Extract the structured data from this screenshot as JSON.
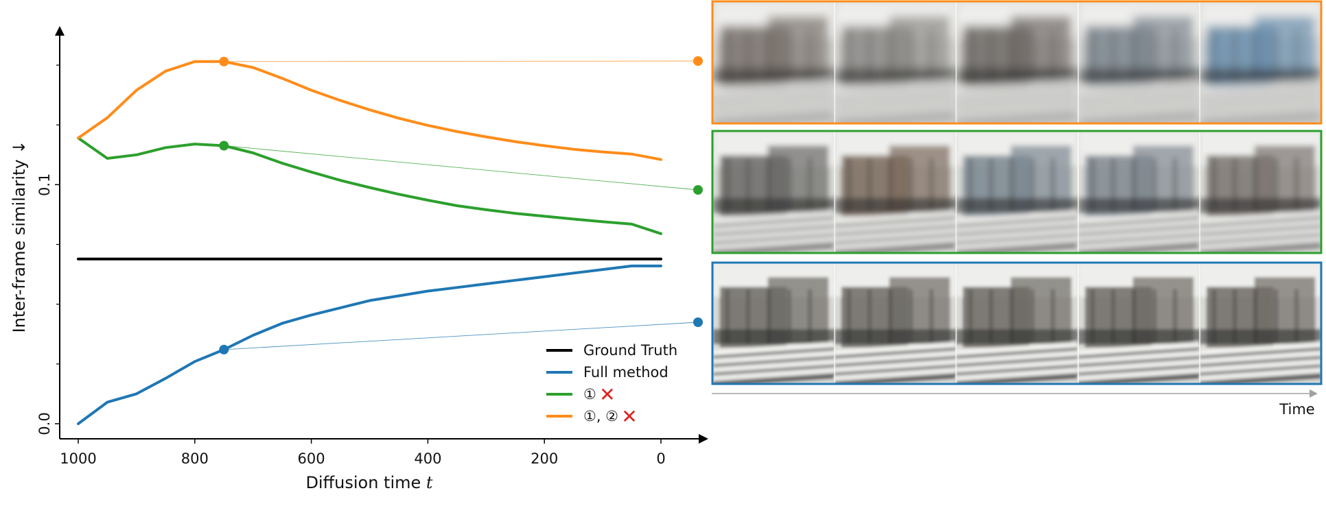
{
  "chart_data": {
    "type": "line",
    "xlabel": "Diffusion time",
    "xlabel_var": "t",
    "ylabel": "Inter-frame similarity ↓",
    "x_reversed": true,
    "xlim": [
      1000,
      0
    ],
    "ylim": [
      0.0,
      0.15
    ],
    "x_ticks": [
      1000,
      800,
      600,
      400,
      200,
      0
    ],
    "x_tick_labels": [
      "1000",
      "800",
      "600",
      "400",
      "200",
      "0"
    ],
    "y_ticks": [
      0.0,
      0.1
    ],
    "y_tick_labels": [
      "0.0",
      "0.1"
    ],
    "y_minor_ticks": [
      0.025,
      0.05,
      0.075,
      0.125,
      0.15
    ],
    "grid": false,
    "legend_placement": "bottom-right",
    "series": [
      {
        "name": "Ground Truth",
        "color": "#000000",
        "x": [
          1000,
          0
        ],
        "y": [
          0.0689,
          0.0689
        ]
      },
      {
        "name": "Full method",
        "color": "#1f77b4",
        "x": [
          1000,
          950,
          900,
          850,
          800,
          750,
          700,
          650,
          600,
          550,
          500,
          450,
          400,
          350,
          300,
          250,
          200,
          150,
          100,
          50,
          0
        ],
        "y": [
          0.0,
          0.009,
          0.0125,
          0.019,
          0.026,
          0.031,
          0.037,
          0.042,
          0.0455,
          0.0485,
          0.0515,
          0.0535,
          0.0555,
          0.057,
          0.0585,
          0.06,
          0.0615,
          0.063,
          0.0645,
          0.066,
          0.066
        ],
        "marker": {
          "x": 750,
          "y": 0.031
        }
      },
      {
        "name": "①",
        "color": "#2ca02c",
        "x": [
          1000,
          950,
          900,
          850,
          800,
          750,
          700,
          650,
          600,
          550,
          500,
          450,
          400,
          350,
          300,
          250,
          200,
          150,
          100,
          50,
          0
        ],
        "y": [
          0.1195,
          0.111,
          0.1125,
          0.1155,
          0.117,
          0.1163,
          0.1133,
          0.109,
          0.1053,
          0.1018,
          0.0988,
          0.096,
          0.0935,
          0.0912,
          0.0895,
          0.088,
          0.0868,
          0.0856,
          0.0845,
          0.0835,
          0.0795
        ],
        "marker": {
          "x": 750,
          "y": 0.1163
        }
      },
      {
        "name": "①, ②",
        "color": "#ff8c1a",
        "x": [
          1000,
          950,
          900,
          850,
          800,
          750,
          700,
          650,
          600,
          550,
          500,
          450,
          400,
          350,
          300,
          250,
          200,
          150,
          100,
          50,
          0
        ],
        "y": [
          0.1195,
          0.128,
          0.1395,
          0.1475,
          0.1515,
          0.1515,
          0.149,
          0.1445,
          0.1395,
          0.1352,
          0.1313,
          0.1278,
          0.1248,
          0.1222,
          0.12,
          0.118,
          0.1163,
          0.1148,
          0.1137,
          0.1128,
          0.1105
        ],
        "marker": {
          "x": 750,
          "y": 0.1515
        }
      }
    ],
    "legend_marks": [
      "✕",
      "✕"
    ]
  },
  "panels": [
    {
      "name": "①, ②",
      "color": "#ff8c1a",
      "frames": 5
    },
    {
      "name": "①",
      "color": "#2ca02c",
      "frames": 5
    },
    {
      "name": "Full method",
      "color": "#1f77b4",
      "frames": 5
    }
  ],
  "time_axis_label": "Time",
  "cross_color": "#e0201e"
}
